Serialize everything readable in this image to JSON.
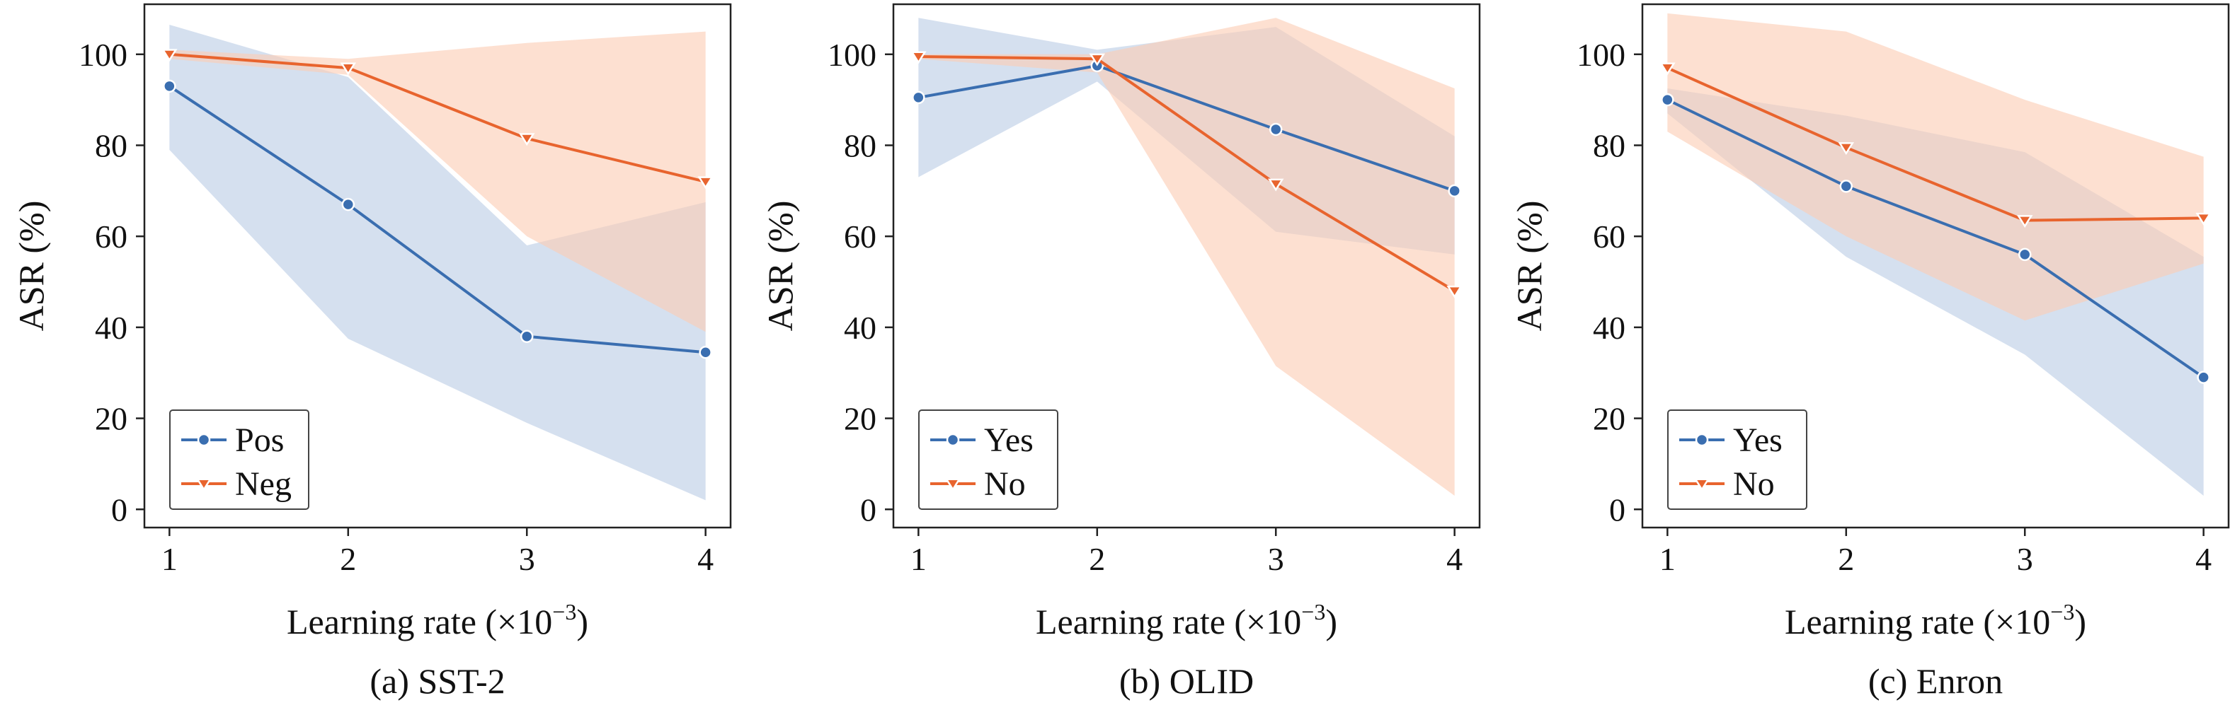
{
  "figure": {
    "colors": {
      "series_1": "#3a6eb0",
      "series_2": "#e8642e",
      "band_1": "#bccde5",
      "band_2": "#fbcdb5"
    },
    "x_unit_sup": "−3"
  },
  "chart_data": [
    {
      "type": "line",
      "caption": "(a) SST-2",
      "xlabel_prefix": "Learning rate (×10",
      "xlabel_suffix": ")",
      "ylabel": "ASR (%)",
      "x": [
        1,
        2,
        3,
        4
      ],
      "x_ticks": [
        "1",
        "2",
        "3",
        "4"
      ],
      "y_ticks": [
        "0",
        "20",
        "40",
        "60",
        "80",
        "100"
      ],
      "xlim": [
        0.86,
        4.14
      ],
      "ylim": [
        -4,
        111
      ],
      "grid": false,
      "legend_position": "bottom-left",
      "series": [
        {
          "name": "Pos",
          "marker": "circle",
          "values": [
            93,
            67,
            38,
            34.5
          ],
          "band_low": [
            79,
            37.5,
            19,
            2
          ],
          "band_high": [
            106.5,
            95,
            58,
            67.5
          ]
        },
        {
          "name": "Neg",
          "marker": "triangle-down",
          "values": [
            100,
            97,
            81.5,
            72
          ],
          "band_low": [
            99,
            95.5,
            60,
            39
          ],
          "band_high": [
            101,
            99,
            102.5,
            105
          ]
        }
      ]
    },
    {
      "type": "line",
      "caption": "(b) OLID",
      "xlabel_prefix": "Learning rate (×10",
      "xlabel_suffix": ")",
      "ylabel": "ASR (%)",
      "x": [
        1,
        2,
        3,
        4
      ],
      "x_ticks": [
        "1",
        "2",
        "3",
        "4"
      ],
      "y_ticks": [
        "0",
        "20",
        "40",
        "60",
        "80",
        "100"
      ],
      "xlim": [
        0.86,
        4.14
      ],
      "ylim": [
        -4,
        111
      ],
      "grid": false,
      "legend_position": "bottom-left",
      "series": [
        {
          "name": "Yes",
          "marker": "circle",
          "values": [
            90.5,
            97.5,
            83.5,
            70
          ],
          "band_low": [
            73,
            94,
            61,
            56
          ],
          "band_high": [
            108,
            101,
            106,
            82
          ]
        },
        {
          "name": "No",
          "marker": "triangle-down",
          "values": [
            99.5,
            99,
            71.5,
            48
          ],
          "band_low": [
            99,
            96,
            31.5,
            3
          ],
          "band_high": [
            100,
            100,
            108,
            92.5
          ]
        }
      ]
    },
    {
      "type": "line",
      "caption": "(c) Enron",
      "xlabel_prefix": "Learning rate (×10",
      "xlabel_suffix": ")",
      "ylabel": "ASR (%)",
      "x": [
        1,
        2,
        3,
        4
      ],
      "x_ticks": [
        "1",
        "2",
        "3",
        "4"
      ],
      "y_ticks": [
        "0",
        "20",
        "40",
        "60",
        "80",
        "100"
      ],
      "xlim": [
        0.86,
        4.14
      ],
      "ylim": [
        -4,
        111
      ],
      "grid": false,
      "legend_position": "bottom-left",
      "series": [
        {
          "name": "Yes",
          "marker": "circle",
          "values": [
            90,
            71,
            56,
            29
          ],
          "band_low": [
            87,
            55.5,
            34,
            3
          ],
          "band_high": [
            92.5,
            86.5,
            78.5,
            55.5
          ]
        },
        {
          "name": "No",
          "marker": "triangle-down",
          "values": [
            97,
            79.5,
            63.5,
            64
          ],
          "band_low": [
            83,
            60,
            41.5,
            54
          ],
          "band_high": [
            109,
            105,
            90,
            77.5
          ]
        }
      ]
    }
  ]
}
